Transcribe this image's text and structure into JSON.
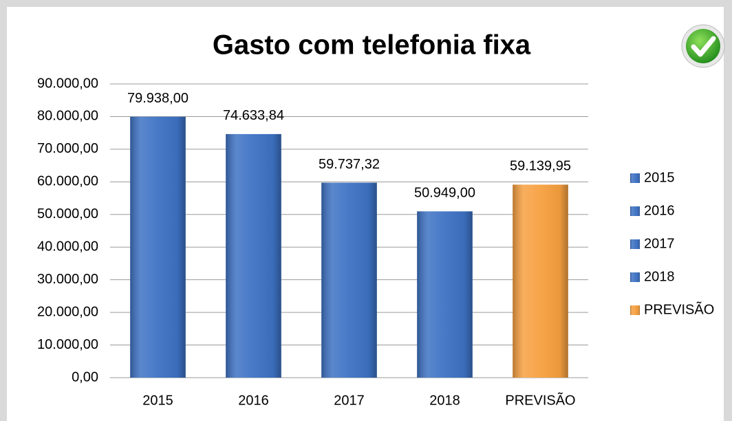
{
  "chart_data": {
    "type": "bar",
    "title": "Gasto com telefonia fixa",
    "categories": [
      "2015",
      "2016",
      "2017",
      "2018",
      "PREVISÃO"
    ],
    "values": [
      79938,
      74633.84,
      59737.32,
      50949,
      59139.95
    ],
    "value_labels": [
      "79.938,00",
      "74.633,84",
      "59.737,32",
      "50.949,00",
      "59.139,95"
    ],
    "colors": [
      "#3d72c4",
      "#3d72c4",
      "#3d72c4",
      "#3d72c4",
      "#f7a040"
    ],
    "ylim": [
      0,
      90000
    ],
    "yticks": [
      {
        "value": 0,
        "label": "0,00"
      },
      {
        "value": 10000,
        "label": "10.000,00"
      },
      {
        "value": 20000,
        "label": "20.000,00"
      },
      {
        "value": 30000,
        "label": "30.000,00"
      },
      {
        "value": 40000,
        "label": "40.000,00"
      },
      {
        "value": 50000,
        "label": "50.000,00"
      },
      {
        "value": 60000,
        "label": "60.000,00"
      },
      {
        "value": 70000,
        "label": "70.000,00"
      },
      {
        "value": 80000,
        "label": "80.000,00"
      },
      {
        "value": 90000,
        "label": "90.000,00"
      }
    ],
    "grid": true,
    "legend": "right"
  }
}
